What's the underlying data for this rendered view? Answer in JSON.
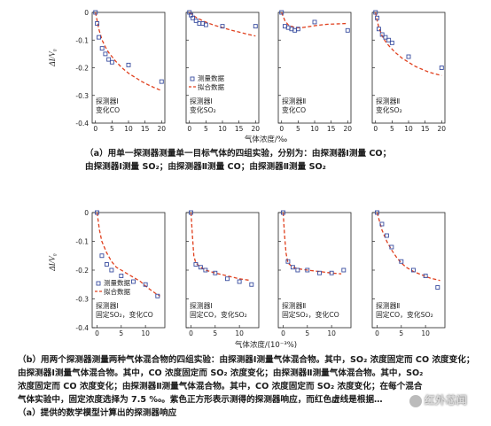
{
  "colors": {
    "data": "#3a4ea0",
    "model": "#e0401e",
    "axis": "#222222"
  },
  "figure_a": {
    "ylabel": "ΔI/V₀",
    "xlabel": "气体浓度/‰",
    "legend": {
      "data": "测量数据",
      "model": "拟合数据"
    }
  },
  "figure_b": {
    "ylabel": "ΔI/V₀",
    "xlabel": "气体浓度/(10⁻³%)",
    "legend": {
      "data": "测量数据",
      "model": "拟合数据"
    }
  },
  "captions": {
    "a_line1": "（a）用单一探测器测量单一目标气体的四组实验，分别为：由探测器Ⅰ测量 CO；",
    "a_line2": "由探测器Ⅰ测量 SO₂；由探测器Ⅱ测量 CO；由探测器Ⅱ测量 SO₂",
    "b_line1": "（b）用两个探测器测量两种气体混合物的四组实验：由探测器Ⅰ测量气体混合物。其中，SO₂ 浓度固定而 CO 浓度变化；",
    "b_line2": "由探测器Ⅰ测量气体混合物。其中，CO 浓度固定而 SO₂ 浓度变化；由探测器Ⅱ测量气体混合物。其中，SO₂",
    "b_line3": "浓度固定而 CO 浓度变化；由探测器Ⅱ测量气体混合物。其中，CO 浓度固定而 SO₂ 浓度变化；在每个混合",
    "b_line4": "气体实验中，固定浓度选择为 7.5 ‰。紫色正方形表示测得的探测器响应，而红色虚线是根据…",
    "b_line5": "（a）提供的数学模型计算出的探测器响应",
    "watermark": "红外芯闻"
  },
  "chart_data": [
    {
      "type": "scatter",
      "panel": "a1",
      "xlim": [
        -1,
        21
      ],
      "ylim": [
        -0.4,
        0
      ],
      "xticks": [
        0,
        5,
        10,
        15,
        20
      ],
      "yticks": [
        0,
        -0.1,
        -0.2,
        -0.3,
        -0.4
      ],
      "series": [
        {
          "name": "测量数据",
          "kind": "points",
          "x": [
            0,
            0.5,
            1,
            2,
            3,
            4,
            5,
            10,
            20
          ],
          "y": [
            0,
            -0.04,
            -0.09,
            -0.13,
            -0.15,
            -0.17,
            -0.18,
            -0.19,
            -0.25
          ]
        },
        {
          "name": "拟合数据",
          "kind": "dashed",
          "x": [
            0,
            1,
            2,
            3,
            4,
            5,
            6,
            8,
            10,
            12,
            14,
            16,
            18,
            20
          ],
          "y": [
            0,
            -0.06,
            -0.1,
            -0.125,
            -0.145,
            -0.16,
            -0.175,
            -0.2,
            -0.22,
            -0.235,
            -0.25,
            -0.262,
            -0.273,
            -0.283
          ]
        }
      ],
      "annotations": [
        "探测器Ⅰ",
        "变化CO"
      ]
    },
    {
      "type": "scatter",
      "panel": "a2",
      "xlim": [
        -1,
        21
      ],
      "ylim": [
        -0.4,
        0
      ],
      "xticks": [
        0,
        5,
        10,
        15,
        20
      ],
      "yticks": [
        0,
        -0.1,
        -0.2,
        -0.3,
        -0.4
      ],
      "series": [
        {
          "name": "测量数据",
          "kind": "points",
          "x": [
            0,
            0.5,
            1,
            2,
            3,
            4,
            5,
            10,
            20
          ],
          "y": [
            0,
            -0.01,
            -0.02,
            -0.03,
            -0.04,
            -0.04,
            -0.045,
            -0.05,
            -0.05
          ]
        },
        {
          "name": "拟合数据",
          "kind": "dashed",
          "x": [
            0,
            1,
            2,
            4,
            6,
            8,
            10,
            12,
            14,
            16,
            18,
            20
          ],
          "y": [
            0,
            -0.01,
            -0.018,
            -0.03,
            -0.04,
            -0.048,
            -0.055,
            -0.062,
            -0.068,
            -0.074,
            -0.08,
            -0.085
          ]
        }
      ],
      "annotations": [
        "探测器Ⅰ",
        "变化SO₂"
      ]
    },
    {
      "type": "scatter",
      "panel": "a3",
      "xlim": [
        -1,
        21
      ],
      "ylim": [
        -0.4,
        0
      ],
      "xticks": [
        0,
        5,
        10,
        15,
        20
      ],
      "yticks": [
        0,
        -0.1,
        -0.2,
        -0.3,
        -0.4
      ],
      "series": [
        {
          "name": "测量数据",
          "kind": "points",
          "x": [
            0,
            1,
            2,
            3,
            4,
            5,
            10,
            20
          ],
          "y": [
            0,
            -0.05,
            -0.055,
            -0.06,
            -0.065,
            -0.06,
            -0.035,
            -0.065
          ]
        },
        {
          "name": "拟合数据",
          "kind": "dashed",
          "x": [
            0,
            1,
            2,
            4,
            6,
            8,
            10,
            12,
            14,
            16,
            18,
            20
          ],
          "y": [
            0,
            -0.03,
            -0.045,
            -0.055,
            -0.055,
            -0.052,
            -0.048,
            -0.045,
            -0.043,
            -0.042,
            -0.041,
            -0.04
          ]
        }
      ],
      "annotations": [
        "探测器Ⅱ",
        "变化CO"
      ]
    },
    {
      "type": "scatter",
      "panel": "a4",
      "xlim": [
        -1,
        21
      ],
      "ylim": [
        -0.4,
        0
      ],
      "xticks": [
        0,
        5,
        10,
        15,
        20
      ],
      "yticks": [
        0,
        -0.1,
        -0.2,
        -0.3,
        -0.4
      ],
      "series": [
        {
          "name": "测量数据",
          "kind": "points",
          "x": [
            0,
            0.5,
            1,
            2,
            3,
            4,
            5,
            10,
            20
          ],
          "y": [
            0,
            -0.02,
            -0.06,
            -0.08,
            -0.09,
            -0.1,
            -0.11,
            -0.16,
            -0.2
          ]
        },
        {
          "name": "拟合数据",
          "kind": "dashed",
          "x": [
            0,
            0.5,
            1,
            2,
            3,
            4,
            6,
            8,
            10,
            12,
            14,
            16,
            18,
            20
          ],
          "y": [
            0,
            -0.03,
            -0.055,
            -0.085,
            -0.105,
            -0.12,
            -0.145,
            -0.165,
            -0.18,
            -0.195,
            -0.205,
            -0.215,
            -0.222,
            -0.228
          ]
        }
      ],
      "annotations": [
        "探测器Ⅱ",
        "变化SO₂"
      ]
    },
    {
      "type": "scatter",
      "panel": "b1",
      "xlim": [
        -1,
        14
      ],
      "ylim": [
        -0.4,
        0
      ],
      "xticks": [
        0,
        5,
        10,
        15
      ],
      "yticks": [
        0,
        -0.1,
        -0.2,
        -0.3,
        -0.4
      ],
      "series": [
        {
          "name": "测量数据",
          "kind": "points",
          "x": [
            0,
            1,
            2,
            3,
            5,
            7.5,
            10,
            12.5
          ],
          "y": [
            0,
            -0.15,
            -0.18,
            -0.2,
            -0.22,
            -0.24,
            -0.25,
            -0.29
          ]
        },
        {
          "name": "拟合数据",
          "kind": "dashed",
          "x": [
            0,
            0.5,
            1,
            2,
            3,
            4,
            5,
            6,
            7.5,
            9,
            10,
            11,
            12,
            13
          ],
          "y": [
            0,
            -0.06,
            -0.1,
            -0.14,
            -0.17,
            -0.19,
            -0.2,
            -0.21,
            -0.225,
            -0.24,
            -0.255,
            -0.268,
            -0.28,
            -0.29
          ]
        }
      ],
      "annotations": [
        "探测器Ⅰ",
        "固定SO₂，变化CO"
      ]
    },
    {
      "type": "scatter",
      "panel": "b2",
      "xlim": [
        -1,
        14
      ],
      "ylim": [
        -0.4,
        0
      ],
      "xticks": [
        0,
        5,
        10,
        15
      ],
      "yticks": [
        0,
        -0.1,
        -0.2,
        -0.3,
        -0.4
      ],
      "series": [
        {
          "name": "测量数据",
          "kind": "points",
          "x": [
            0,
            1,
            2,
            3,
            5,
            7.5,
            10,
            12.5
          ],
          "y": [
            0,
            -0.18,
            -0.19,
            -0.2,
            -0.21,
            -0.23,
            -0.24,
            -0.25
          ]
        },
        {
          "name": "拟合数据",
          "kind": "dashed",
          "x": [
            0,
            0.3,
            0.6,
            1,
            2,
            3,
            5,
            7.5,
            10,
            12
          ],
          "y": [
            0,
            -0.08,
            -0.15,
            -0.175,
            -0.19,
            -0.2,
            -0.21,
            -0.22,
            -0.23,
            -0.235
          ]
        }
      ],
      "annotations": [
        "探测器Ⅰ",
        "固定CO，变化SO₂"
      ]
    },
    {
      "type": "scatter",
      "panel": "b3",
      "xlim": [
        -1,
        14
      ],
      "ylim": [
        -0.4,
        0
      ],
      "xticks": [
        0,
        5,
        10,
        15
      ],
      "yticks": [
        0,
        -0.1,
        -0.2,
        -0.3,
        -0.4
      ],
      "series": [
        {
          "name": "测量数据",
          "kind": "points",
          "x": [
            0,
            1,
            2,
            3,
            5,
            7.5,
            10,
            12.5
          ],
          "y": [
            0,
            -0.17,
            -0.19,
            -0.2,
            -0.2,
            -0.21,
            -0.21,
            -0.2
          ]
        },
        {
          "name": "拟合数据",
          "kind": "dashed",
          "x": [
            0,
            0.3,
            0.6,
            1,
            2,
            3,
            5,
            7.5,
            10,
            12
          ],
          "y": [
            0,
            -0.08,
            -0.14,
            -0.175,
            -0.19,
            -0.195,
            -0.2,
            -0.205,
            -0.21,
            -0.213
          ]
        }
      ],
      "annotations": [
        "探测器Ⅱ",
        "固定SO₂，变化CO"
      ]
    },
    {
      "type": "scatter",
      "panel": "b4",
      "xlim": [
        -1,
        14
      ],
      "ylim": [
        -0.4,
        0
      ],
      "xticks": [
        0,
        5,
        10,
        15
      ],
      "yticks": [
        0,
        -0.1,
        -0.2,
        -0.3,
        -0.4
      ],
      "series": [
        {
          "name": "测量数据",
          "kind": "points",
          "x": [
            0,
            1,
            2,
            3,
            5,
            7.5,
            10,
            12.5
          ],
          "y": [
            0,
            -0.04,
            -0.08,
            -0.12,
            -0.17,
            -0.2,
            -0.22,
            -0.26
          ]
        },
        {
          "name": "拟合数据",
          "kind": "dashed",
          "x": [
            0,
            0.5,
            1,
            2,
            3,
            4,
            5,
            6,
            7.5,
            9,
            10,
            11,
            12,
            13
          ],
          "y": [
            0,
            -0.03,
            -0.06,
            -0.1,
            -0.13,
            -0.155,
            -0.175,
            -0.19,
            -0.205,
            -0.215,
            -0.222,
            -0.228,
            -0.232,
            -0.236
          ]
        }
      ],
      "annotations": [
        "探测器Ⅱ",
        "固定CO，变化SO₂"
      ]
    }
  ]
}
